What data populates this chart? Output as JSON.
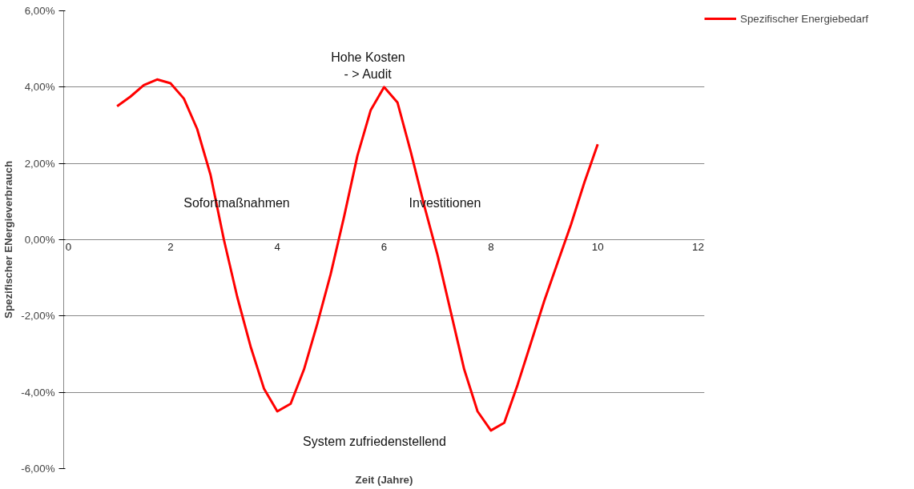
{
  "chart_data": {
    "type": "line",
    "xlabel": "Zeit (Jahre)",
    "ylabel": "Spezifischer ENergieverbrauch",
    "x": [
      1,
      1.25,
      1.5,
      1.75,
      2,
      2.25,
      2.5,
      2.75,
      3,
      3.25,
      3.5,
      3.75,
      4,
      4.25,
      4.5,
      4.75,
      5,
      5.25,
      5.5,
      5.75,
      6,
      6.25,
      6.5,
      6.75,
      7,
      7.25,
      7.5,
      7.75,
      8,
      8.25,
      8.5,
      8.75,
      9,
      9.25,
      9.5,
      9.75,
      10
    ],
    "series": [
      {
        "name": "Spezifischer Energiebedarf",
        "color": "#ff0000",
        "values": [
          3.5,
          3.75,
          4.05,
          4.2,
          4.1,
          3.7,
          2.9,
          1.7,
          0.0,
          -1.5,
          -2.8,
          -3.9,
          -4.5,
          -4.3,
          -3.4,
          -2.2,
          -0.9,
          0.6,
          2.2,
          3.4,
          4.0,
          3.6,
          2.3,
          0.9,
          -0.4,
          -1.9,
          -3.4,
          -4.5,
          -5.0,
          -4.8,
          -3.8,
          -2.7,
          -1.6,
          -0.6,
          0.4,
          1.5,
          2.5
        ]
      }
    ],
    "xlim": [
      0,
      12
    ],
    "xticks": [
      0,
      2,
      4,
      6,
      8,
      10,
      12
    ],
    "ylim": [
      -6,
      6
    ],
    "yticks": [
      {
        "value": -6,
        "label": "-6,00%"
      },
      {
        "value": -4,
        "label": "-4,00%"
      },
      {
        "value": -2,
        "label": "-2,00%"
      },
      {
        "value": 0,
        "label": "0,00%"
      },
      {
        "value": 2,
        "label": "2,00%"
      },
      {
        "value": 4,
        "label": "4,00%"
      },
      {
        "value": 6,
        "label": "6,00%"
      }
    ],
    "grid": "y",
    "legend": "right",
    "marker": "none",
    "line_style": "solid",
    "annotations": [
      "Sofortmaßnahmen",
      "Hohe Kosten\n- > Audit",
      "Investitionen",
      "System zufriedenstellend"
    ]
  }
}
